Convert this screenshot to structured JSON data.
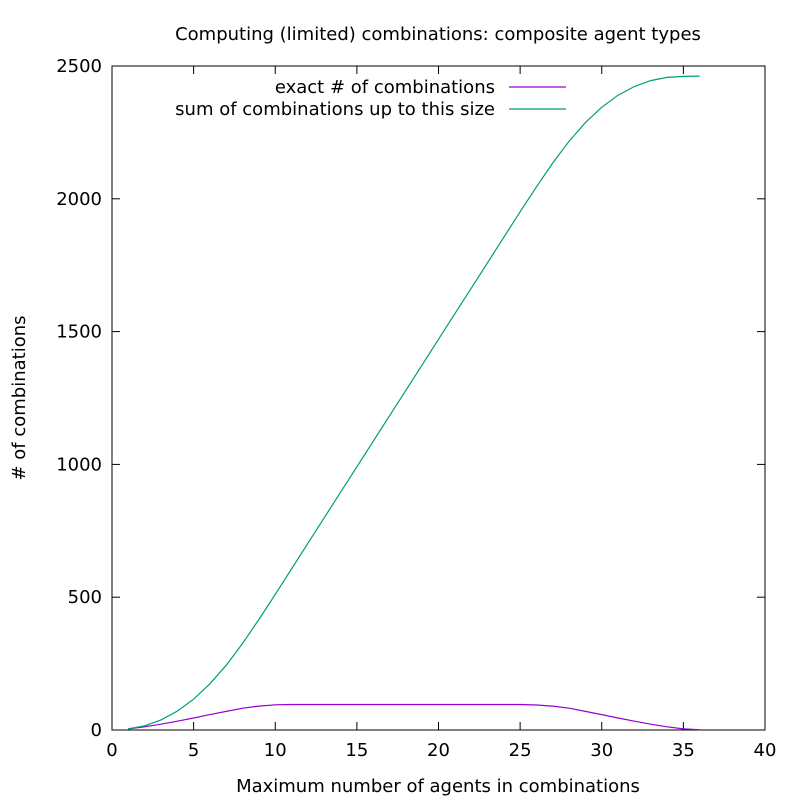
{
  "chart_data": {
    "type": "line",
    "title": "Computing (limited) combinations: composite agent types",
    "xlabel": "Maximum number of agents in combinations",
    "ylabel": "# of combinations",
    "xlim": [
      0,
      40
    ],
    "ylim": [
      0,
      2500
    ],
    "xticks": [
      0,
      5,
      10,
      15,
      20,
      25,
      30,
      35,
      40
    ],
    "yticks": [
      0,
      500,
      1000,
      1500,
      2000,
      2500
    ],
    "grid": false,
    "legend_position": "top-right",
    "series": [
      {
        "name": "exact # of combinations",
        "color": "#9400d3",
        "x": [
          1,
          2,
          3,
          4,
          5,
          6,
          7,
          8,
          9,
          10,
          11,
          12,
          13,
          14,
          15,
          16,
          17,
          18,
          19,
          20,
          21,
          22,
          23,
          24,
          25,
          26,
          27,
          28,
          29,
          30,
          31,
          32,
          33,
          34,
          35,
          36
        ],
        "y": [
          4,
          12,
          22,
          33,
          45,
          58,
          70,
          82,
          90,
          95,
          96,
          96,
          96,
          96,
          96,
          96,
          96,
          96,
          96,
          96,
          96,
          96,
          96,
          96,
          96,
          94,
          90,
          82,
          70,
          58,
          45,
          33,
          22,
          12,
          4,
          1
        ]
      },
      {
        "name": "sum of combinations up to this size",
        "color": "#009e73",
        "x": [
          1,
          2,
          3,
          4,
          5,
          6,
          7,
          8,
          9,
          10,
          11,
          12,
          13,
          14,
          15,
          16,
          17,
          18,
          19,
          20,
          21,
          22,
          23,
          24,
          25,
          26,
          27,
          28,
          29,
          30,
          31,
          32,
          33,
          34,
          35,
          36
        ],
        "y": [
          4,
          16,
          38,
          71,
          116,
          174,
          244,
          326,
          416,
          511,
          607,
          703,
          799,
          895,
          991,
          1087,
          1183,
          1279,
          1375,
          1471,
          1567,
          1663,
          1759,
          1855,
          1951,
          2045,
          2135,
          2217,
          2287,
          2345,
          2390,
          2423,
          2445,
          2457,
          2461,
          2462
        ]
      }
    ]
  }
}
